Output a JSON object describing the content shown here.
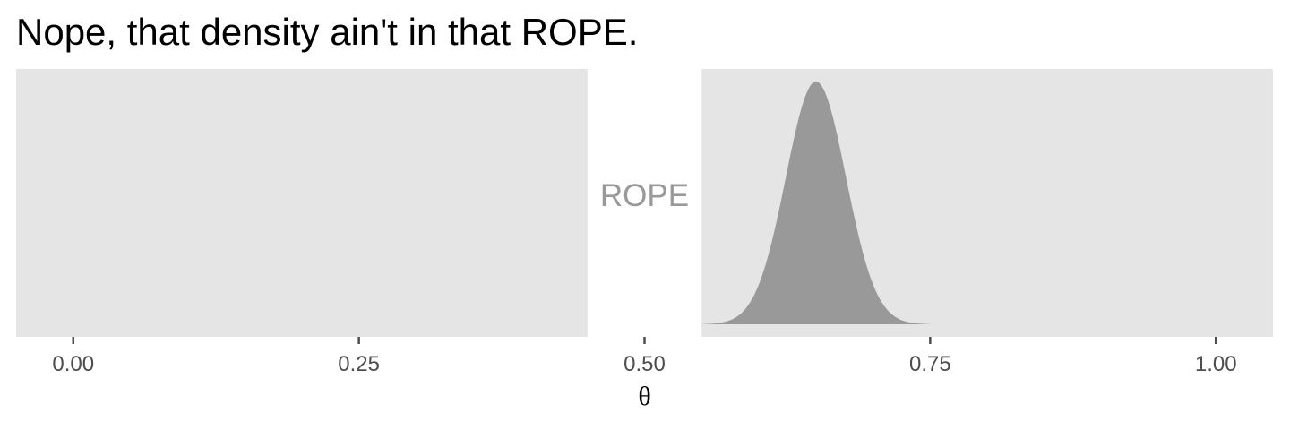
{
  "chart_data": {
    "type": "area",
    "title": "Nope, that density ain't in that ROPE.",
    "xlabel": "θ",
    "ylabel": "",
    "xlim": [
      -0.05,
      1.05
    ],
    "x_ticks": [
      0,
      0.25,
      0.5,
      0.75,
      1.0
    ],
    "x_tick_labels": [
      "0.00",
      "0.25",
      "0.50",
      "0.75",
      "1.00"
    ],
    "grid": false,
    "legend": "none",
    "rope": {
      "label": "ROPE",
      "from": 0.45,
      "to": 0.55
    },
    "density": {
      "mean": 0.65,
      "sd": 0.0263,
      "x_from": 0.55,
      "x_to": 0.75
    },
    "colors": {
      "panel_background": "#e5e5e5",
      "density_fill": "#999999",
      "rope_label": "#999999",
      "tick": "#4d4d4d",
      "tick_label": "#4d4d4d",
      "axis_title": "#000000"
    }
  }
}
